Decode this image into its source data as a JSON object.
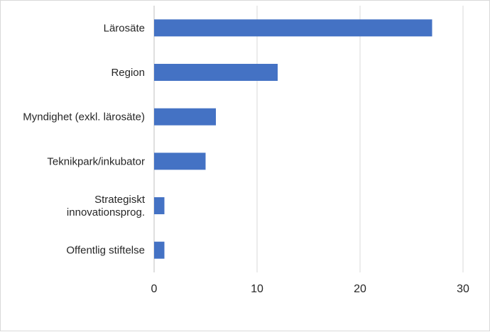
{
  "chart_data": {
    "type": "bar",
    "orientation": "horizontal",
    "categories": [
      [
        "Lärosäte"
      ],
      [
        "Region"
      ],
      [
        "Myndighet (exkl. lärosäte)"
      ],
      [
        "Teknikpark/inkubator"
      ],
      [
        "Strategiskt",
        "innovationsprog."
      ],
      [
        "Offentlig stiftelse"
      ]
    ],
    "values": [
      27,
      12,
      6,
      5,
      1,
      1
    ],
    "xlim": [
      0,
      30
    ],
    "xticks": [
      "0",
      "10",
      "20",
      "30"
    ],
    "bar_color": "#4472c4",
    "grid": true,
    "legend": "none",
    "title": "",
    "xlabel": "",
    "ylabel": ""
  }
}
